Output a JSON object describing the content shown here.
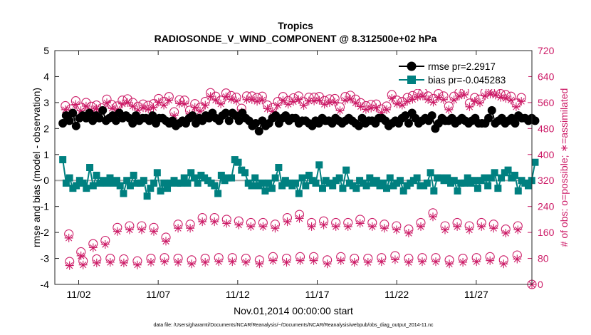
{
  "chart_data": {
    "type": "line",
    "title": "Tropics",
    "subtitle": "RADIOSONDE_V_WIND_COMPONENT @ 8.312500e+02 hPa",
    "xlabel": "Nov.01,2014 00:00:00 start",
    "ylabel_left": "rmse and bias (model - observation)",
    "ylabel_right": "# of obs: o=possible; ∗=assimilated",
    "footnote": "data file: /Users/gharamti/Documents/NCAR/Reanalysis/~/Documents/NCAR/Reanalysis/webpub/obs_diag_output_2014-11.nc",
    "xlim": [
      0.5,
      30.5
    ],
    "ylim_left": [
      -4,
      5
    ],
    "ylim_right": [
      0,
      720
    ],
    "xticks": [
      {
        "value": 2,
        "label": "11/02"
      },
      {
        "value": 7,
        "label": "11/07"
      },
      {
        "value": 12,
        "label": "11/12"
      },
      {
        "value": 17,
        "label": "11/17"
      },
      {
        "value": 22,
        "label": "11/22"
      },
      {
        "value": 27,
        "label": "11/27"
      }
    ],
    "yticks_left": [
      "-4",
      "-3",
      "-2",
      "-1",
      "0",
      "1",
      "2",
      "3",
      "4",
      "5"
    ],
    "yticks_right": [
      "0",
      "80",
      "160",
      "240",
      "320",
      "400",
      "480",
      "560",
      "640",
      "720"
    ],
    "colors": {
      "rmse": "#000000",
      "bias": "#008080",
      "counts": "#cc1a66",
      "zero_line": "#a8a8a8"
    },
    "legend": {
      "location": "top-right",
      "rmse_label": "rmse pr=2.2917",
      "bias_label": "bias pr=-0.045283"
    },
    "rmse": [
      2.2,
      2.5,
      2.3,
      2.6,
      2.1,
      2.4,
      2.5,
      2.4,
      2.6,
      2.3,
      2.5,
      2.4,
      2.7,
      2.3,
      2.4,
      2.5,
      2.3,
      2.6,
      2.4,
      2.5,
      2.4,
      2.2,
      2.5,
      2.3,
      2.4,
      2.4,
      2.3,
      2.5,
      2.2,
      2.4,
      2.4,
      2.3,
      2.2,
      2.3,
      2.1,
      2.2,
      2.3,
      2.2,
      2.4,
      2.5,
      2.2,
      2.4,
      2.3,
      2.5,
      2.4,
      2.6,
      2.4,
      2.3,
      2.5,
      2.6,
      2.3,
      2.6,
      2.5,
      2.3,
      2.6,
      2.4,
      2.3,
      2.1,
      2.2,
      1.9,
      2.3,
      2.1,
      2.2,
      2.4,
      2.5,
      2.2,
      2.4,
      2.5,
      2.3,
      2.4,
      2.4,
      2.2,
      2.3,
      2.3,
      2.2,
      2.1,
      2.3,
      2.2,
      2.4,
      2.3,
      2.3,
      2.2,
      2.4,
      2.3,
      2.2,
      2.3,
      2.4,
      2.3,
      2.2,
      2.1,
      2.4,
      2.2,
      2.3,
      2.3,
      2.2,
      2.4,
      2.4,
      2.3,
      2.1,
      2.2,
      2.3,
      2.2,
      2.4,
      2.5,
      2.2,
      2.6,
      2.4,
      2.2,
      2.3,
      2.4,
      2.3,
      2.5,
      2.0,
      2.2,
      2.4,
      2.3,
      2.3,
      2.4,
      2.2,
      2.3,
      2.4,
      2.3,
      2.2,
      2.3,
      2.4,
      2.2,
      2.2,
      2.2,
      2.4,
      2.7,
      2.2,
      2.3,
      2.4,
      2.2,
      2.3,
      2.4,
      2.2,
      2.5,
      2.4,
      2.4,
      2.3,
      2.4,
      2.3
    ],
    "bias": [
      0.8,
      -0.1,
      0.1,
      -0.3,
      -0.2,
      0.0,
      -0.1,
      -0.3,
      0.5,
      -0.2,
      0.2,
      -0.1,
      0.0,
      -0.1,
      0.1,
      -0.1,
      0.0,
      -0.2,
      -0.5,
      0.0,
      -0.2,
      0.2,
      -0.1,
      -0.1,
      0.0,
      -0.6,
      -0.3,
      -0.1,
      0.3,
      -0.4,
      -0.1,
      -0.3,
      -0.1,
      0.0,
      -0.1,
      -0.1,
      0.1,
      -0.1,
      0.3,
      0.1,
      -0.1,
      0.2,
      0.1,
      0.0,
      -0.1,
      -0.2,
      -0.5,
      0.2,
      0.0,
      0.1,
      0.1,
      0.8,
      0.7,
      0.4,
      0.3,
      -0.1,
      -0.2,
      0.1,
      -0.2,
      -0.1,
      -0.4,
      -0.1,
      -0.3,
      0.1,
      0.5,
      -0.2,
      0.0,
      -0.1,
      -0.2,
      -0.1,
      -0.5,
      0.1,
      -0.2,
      0.2,
      0.0,
      -0.1,
      0.6,
      -0.3,
      0.0,
      -0.1,
      -0.2,
      0.0,
      0.1,
      -0.3,
      0.4,
      -0.1,
      -0.2,
      -0.3,
      0.0,
      -0.1,
      -0.2,
      0.1,
      -0.1,
      0.0,
      -0.2,
      -0.1,
      -0.3,
      0.1,
      -0.2,
      -0.1,
      0.0,
      -0.4,
      -0.2,
      -0.1,
      0.0,
      0.1,
      -0.2,
      -0.2,
      -0.1,
      0.3,
      -0.4,
      0.1,
      0.1,
      0.0,
      0.1,
      -0.1,
      0.0,
      -0.4,
      -0.1,
      -0.1,
      0.1,
      -0.1,
      0.0,
      -0.3,
      0.0,
      0.1,
      -0.2,
      0.1,
      0.3,
      -0.3,
      0.1,
      0.3,
      0.4,
      0.1,
      0.2,
      -0.4,
      0.0,
      -0.1,
      -0.2,
      0.0,
      0.7
    ],
    "obs_high_possible": [
      550,
      540,
      565,
      545,
      560,
      548,
      552,
      543,
      570,
      553,
      549,
      567,
      571,
      560,
      548,
      555,
      551,
      556,
      572,
      563,
      578,
      531,
      568,
      567,
      536,
      556,
      545,
      563,
      590,
      579,
      567,
      589,
      581,
      576,
      542,
      580,
      580,
      575,
      579,
      552,
      544,
      563,
      578,
      566,
      574,
      580,
      562,
      576,
      576,
      578,
      566,
      571,
      572,
      546,
      578,
      582,
      570,
      559,
      550,
      554,
      555,
      540,
      549,
      584,
      567,
      563,
      575,
      581,
      588,
      591,
      580,
      572,
      587,
      580,
      549,
      579,
      591,
      595,
      558,
      575,
      570,
      592,
      597,
      594,
      587,
      584,
      579,
      558,
      575
    ],
    "obs_high_assim": [
      538,
      530,
      554,
      535,
      549,
      537,
      541,
      532,
      559,
      542,
      538,
      556,
      560,
      549,
      537,
      544,
      540,
      545,
      561,
      552,
      567,
      520,
      557,
      556,
      525,
      545,
      534,
      552,
      579,
      568,
      556,
      578,
      570,
      565,
      531,
      569,
      569,
      564,
      568,
      541,
      533,
      552,
      567,
      555,
      563,
      569,
      551,
      565,
      565,
      567,
      555,
      560,
      561,
      535,
      567,
      571,
      559,
      548,
      539,
      543,
      544,
      529,
      538,
      573,
      556,
      552,
      564,
      570,
      577,
      580,
      569,
      561,
      576,
      569,
      538,
      568,
      580,
      584,
      547,
      564,
      559,
      581,
      586,
      583,
      576,
      573,
      568,
      547,
      564
    ],
    "obs_mid_possible": [
      155,
      100,
      125,
      135,
      175,
      180,
      180,
      175,
      145,
      185,
      185,
      205,
      205,
      200,
      195,
      190,
      190,
      185,
      205,
      215,
      190,
      195,
      190,
      190,
      200,
      190,
      185,
      180,
      170,
      190,
      220,
      180,
      190,
      180,
      190,
      185,
      170,
      180
    ],
    "obs_mid_assim": [
      143,
      88,
      113,
      123,
      163,
      168,
      168,
      163,
      133,
      173,
      173,
      193,
      193,
      188,
      183,
      178,
      178,
      173,
      193,
      203,
      178,
      183,
      178,
      178,
      188,
      178,
      173,
      168,
      158,
      178,
      208,
      168,
      178,
      168,
      178,
      173,
      158,
      168
    ],
    "obs_low_possible": [
      70,
      72,
      78,
      80,
      78,
      72,
      80,
      82,
      80,
      75,
      80,
      82,
      82,
      80,
      75,
      85,
      80,
      85,
      85,
      75,
      85,
      80,
      80,
      82,
      88,
      80,
      82,
      82,
      75,
      80,
      82,
      85,
      75,
      90
    ],
    "obs_low_assim": [
      58,
      60,
      66,
      68,
      66,
      60,
      68,
      70,
      68,
      63,
      68,
      70,
      70,
      68,
      63,
      73,
      68,
      73,
      73,
      63,
      73,
      68,
      68,
      70,
      76,
      68,
      70,
      70,
      63,
      68,
      70,
      73,
      63,
      78
    ],
    "last_obs_possible": 0,
    "last_obs_assim": 0
  }
}
